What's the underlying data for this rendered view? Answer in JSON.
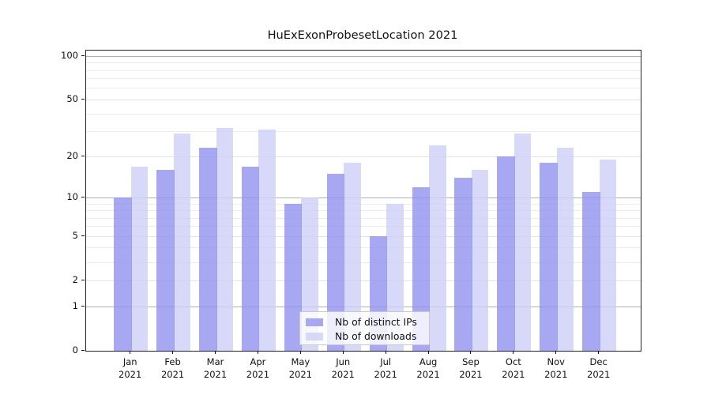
{
  "title": "HuExExonProbesetLocation 2021",
  "chart_data": {
    "type": "bar",
    "title": "HuExExonProbesetLocation 2021",
    "categories": [
      "Jan 2021",
      "Feb 2021",
      "Mar 2021",
      "Apr 2021",
      "May 2021",
      "Jun 2021",
      "Jul 2021",
      "Aug 2021",
      "Sep 2021",
      "Oct 2021",
      "Nov 2021",
      "Dec 2021"
    ],
    "months": [
      "Jan",
      "Feb",
      "Mar",
      "Apr",
      "May",
      "Jun",
      "Jul",
      "Aug",
      "Sep",
      "Oct",
      "Nov",
      "Dec"
    ],
    "year": "2021",
    "series": [
      {
        "name": "Nb of distinct IPs",
        "color": "rgba(146,146,239,0.8)",
        "values": [
          10,
          16,
          23,
          17,
          9,
          15,
          5,
          12,
          14,
          20,
          18,
          11
        ]
      },
      {
        "name": "Nb of downloads",
        "color": "rgba(206,206,246,0.8)",
        "values": [
          17,
          29,
          32,
          31,
          10,
          18,
          9,
          24,
          16,
          29,
          23,
          19
        ]
      }
    ],
    "y_axis": {
      "scale": "log10(1+x)",
      "ticks": [
        {
          "label": "100",
          "value": 100
        },
        {
          "label": "50",
          "value": 50
        },
        {
          "label": "20",
          "value": 20
        },
        {
          "label": "10",
          "value": 10
        },
        {
          "label": "5",
          "value": 5
        },
        {
          "label": "2",
          "value": 2
        },
        {
          "label": "1",
          "value": 1
        },
        {
          "label": "0",
          "value": 0
        }
      ],
      "minor_gridlines": [
        3,
        4,
        6,
        7,
        8,
        9,
        30,
        40,
        60,
        70,
        80,
        90
      ],
      "emphasized_gridlines": [
        1,
        10,
        100
      ],
      "ylim": [
        0,
        110
      ]
    },
    "legend": {
      "position": "lower center",
      "entries": [
        {
          "label": "Nb of distinct IPs",
          "color": "rgba(146,146,239,0.8)"
        },
        {
          "label": "Nb of downloads",
          "color": "rgba(206,206,246,0.8)"
        }
      ]
    },
    "grid": true
  }
}
